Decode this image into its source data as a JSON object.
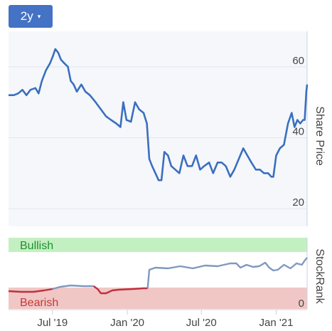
{
  "range_selector": {
    "label": "2y",
    "caret": "▾"
  },
  "chart_data": [
    {
      "type": "line",
      "ylabel": "Share Price",
      "ylim": [
        15,
        70
      ],
      "yticks": [
        20,
        40,
        60
      ],
      "grid": true,
      "series": [
        {
          "color": "#3a6fbf",
          "points": [
            [
              "2019-03-15",
              52
            ],
            [
              "2019-03-28",
              52
            ],
            [
              "2019-04-08",
              52.5
            ],
            [
              "2019-04-18",
              53.5
            ],
            [
              "2019-04-28",
              52
            ],
            [
              "2019-05-08",
              53.5
            ],
            [
              "2019-05-20",
              54
            ],
            [
              "2019-05-28",
              52.5
            ],
            [
              "2019-06-05",
              56
            ],
            [
              "2019-06-15",
              59
            ],
            [
              "2019-06-25",
              61
            ],
            [
              "2019-07-02",
              63
            ],
            [
              "2019-07-08",
              65
            ],
            [
              "2019-07-15",
              64
            ],
            [
              "2019-07-22",
              62
            ],
            [
              "2019-07-30",
              61
            ],
            [
              "2019-08-08",
              60
            ],
            [
              "2019-08-15",
              56
            ],
            [
              "2019-08-22",
              55
            ],
            [
              "2019-08-30",
              53
            ],
            [
              "2019-09-10",
              55
            ],
            [
              "2019-09-20",
              53
            ],
            [
              "2019-10-01",
              52
            ],
            [
              "2019-10-15",
              50
            ],
            [
              "2019-10-28",
              48
            ],
            [
              "2019-11-10",
              46
            ],
            [
              "2019-11-22",
              45
            ],
            [
              "2019-12-05",
              44
            ],
            [
              "2019-12-15",
              43
            ],
            [
              "2019-12-22",
              50
            ],
            [
              "2019-12-30",
              45
            ],
            [
              "2020-01-10",
              44.5
            ],
            [
              "2020-01-20",
              50
            ],
            [
              "2020-01-30",
              48
            ],
            [
              "2020-02-10",
              47
            ],
            [
              "2020-02-18",
              44
            ],
            [
              "2020-02-24",
              34
            ],
            [
              "2020-03-02",
              32
            ],
            [
              "2020-03-10",
              30
            ],
            [
              "2020-03-18",
              28
            ],
            [
              "2020-03-25",
              28
            ],
            [
              "2020-04-01",
              36
            ],
            [
              "2020-04-10",
              35
            ],
            [
              "2020-04-18",
              32
            ],
            [
              "2020-04-28",
              31
            ],
            [
              "2020-05-08",
              30
            ],
            [
              "2020-05-18",
              35
            ],
            [
              "2020-05-28",
              32
            ],
            [
              "2020-06-08",
              32
            ],
            [
              "2020-06-18",
              35
            ],
            [
              "2020-06-28",
              31
            ],
            [
              "2020-07-08",
              32
            ],
            [
              "2020-07-20",
              33
            ],
            [
              "2020-07-30",
              30
            ],
            [
              "2020-08-10",
              33
            ],
            [
              "2020-08-20",
              33
            ],
            [
              "2020-08-30",
              32
            ],
            [
              "2020-09-10",
              29
            ],
            [
              "2020-09-20",
              31
            ],
            [
              "2020-10-01",
              34
            ],
            [
              "2020-10-12",
              37
            ],
            [
              "2020-10-22",
              35
            ],
            [
              "2020-11-01",
              33
            ],
            [
              "2020-11-12",
              31
            ],
            [
              "2020-11-22",
              31
            ],
            [
              "2020-12-02",
              30
            ],
            [
              "2020-12-12",
              30
            ],
            [
              "2020-12-20",
              29
            ],
            [
              "2020-12-25",
              29
            ],
            [
              "2021-01-01",
              35
            ],
            [
              "2021-01-10",
              37
            ],
            [
              "2021-01-20",
              38
            ],
            [
              "2021-01-30",
              44
            ],
            [
              "2021-02-08",
              47
            ],
            [
              "2021-02-15",
              43
            ],
            [
              "2021-02-22",
              45
            ],
            [
              "2021-03-01",
              44
            ],
            [
              "2021-03-08",
              45
            ],
            [
              "2021-03-12",
              45
            ],
            [
              "2021-03-16",
              53
            ],
            [
              "2021-03-18",
              55
            ]
          ]
        }
      ]
    },
    {
      "type": "line",
      "ylabel": "StockRank",
      "ylim": [
        0,
        100
      ],
      "yticks": [
        0
      ],
      "zones": [
        {
          "label": "Bullish",
          "from": 80,
          "to": 100,
          "fill": "#c3f0c1",
          "text": "#1e8f2e"
        },
        {
          "label": "Bearish",
          "from": 0,
          "to": 30,
          "fill": "#f1c7c5",
          "text": "#c23a3a"
        }
      ],
      "series": [
        {
          "color_below": "#c0303e",
          "color_above": "#7f99bf",
          "threshold": 30,
          "points": [
            [
              "2019-03-15",
              25
            ],
            [
              "2019-04-15",
              24
            ],
            [
              "2019-05-15",
              24
            ],
            [
              "2019-06-10",
              26
            ],
            [
              "2019-07-01",
              28
            ],
            [
              "2019-07-20",
              31
            ],
            [
              "2019-08-15",
              33
            ],
            [
              "2019-09-15",
              32
            ],
            [
              "2019-10-10",
              32
            ],
            [
              "2019-10-20",
              28
            ],
            [
              "2019-10-28",
              22
            ],
            [
              "2019-11-10",
              22
            ],
            [
              "2019-11-25",
              26
            ],
            [
              "2019-12-10",
              27
            ],
            [
              "2020-01-15",
              28
            ],
            [
              "2020-02-10",
              29
            ],
            [
              "2020-02-20",
              29
            ],
            [
              "2020-02-24",
              55
            ],
            [
              "2020-03-10",
              58
            ],
            [
              "2020-04-10",
              57
            ],
            [
              "2020-05-10",
              60
            ],
            [
              "2020-06-10",
              57
            ],
            [
              "2020-07-10",
              61
            ],
            [
              "2020-08-10",
              60
            ],
            [
              "2020-09-10",
              64
            ],
            [
              "2020-09-25",
              64
            ],
            [
              "2020-10-05",
              58
            ],
            [
              "2020-10-20",
              62
            ],
            [
              "2020-11-05",
              59
            ],
            [
              "2020-11-20",
              60
            ],
            [
              "2020-12-05",
              65
            ],
            [
              "2020-12-15",
              58
            ],
            [
              "2020-12-25",
              54
            ],
            [
              "2021-01-05",
              55
            ],
            [
              "2021-01-20",
              62
            ],
            [
              "2021-02-05",
              57
            ],
            [
              "2021-02-20",
              64
            ],
            [
              "2021-03-05",
              62
            ],
            [
              "2021-03-12",
              68
            ],
            [
              "2021-03-18",
              72
            ]
          ]
        }
      ]
    }
  ],
  "x_axis": {
    "ticks": [
      {
        "label": "Jul '19",
        "date": "2019-07-01"
      },
      {
        "label": "Jan '20",
        "date": "2020-01-01"
      },
      {
        "label": "Jul '20",
        "date": "2020-07-01"
      },
      {
        "label": "Jan '21",
        "date": "2021-01-01"
      }
    ]
  }
}
